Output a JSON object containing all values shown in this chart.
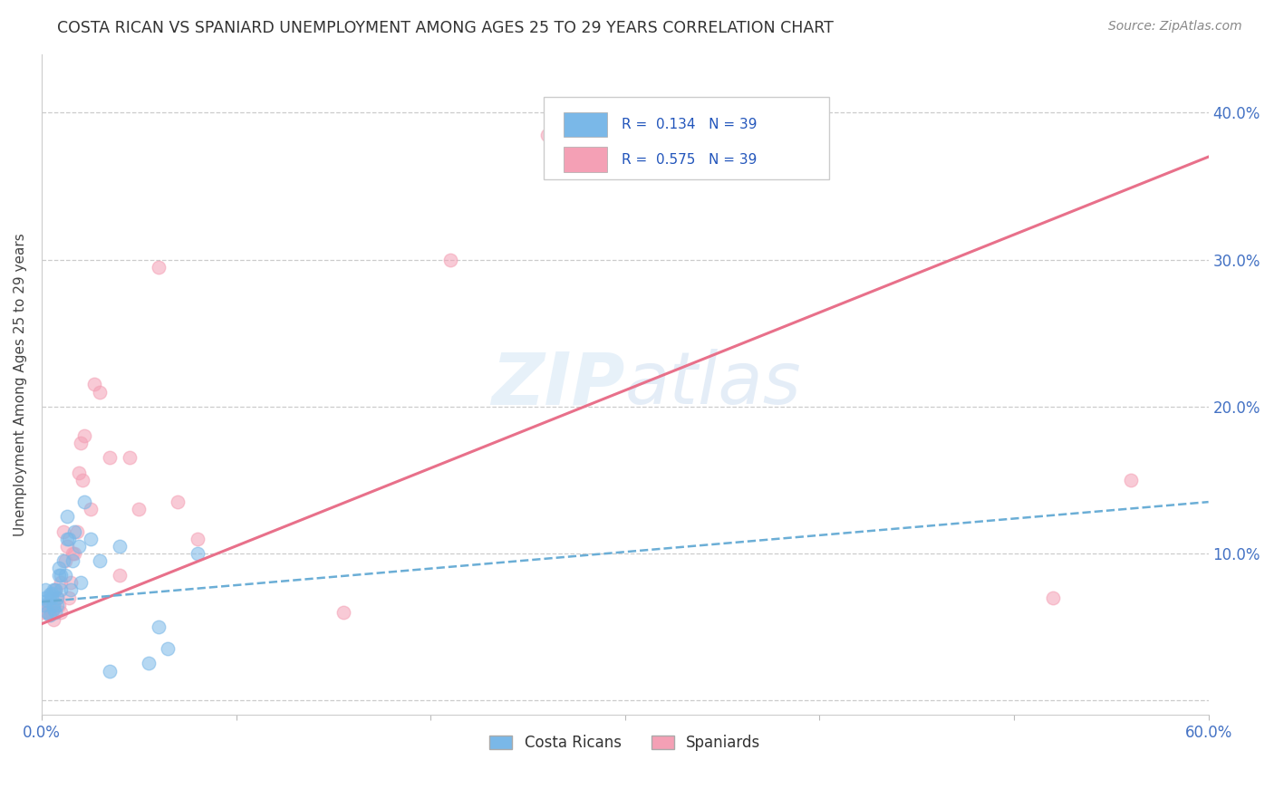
{
  "title": "COSTA RICAN VS SPANIARD UNEMPLOYMENT AMONG AGES 25 TO 29 YEARS CORRELATION CHART",
  "source": "Source: ZipAtlas.com",
  "ylabel": "Unemployment Among Ages 25 to 29 years",
  "xlim": [
    0.0,
    0.6
  ],
  "ylim": [
    -0.01,
    0.44
  ],
  "xticks": [
    0.0,
    0.1,
    0.2,
    0.3,
    0.4,
    0.5,
    0.6
  ],
  "yticks": [
    0.0,
    0.1,
    0.2,
    0.3,
    0.4
  ],
  "xticklabels": [
    "0.0%",
    "",
    "",
    "",
    "",
    "",
    "60.0%"
  ],
  "yticklabels_right": [
    "",
    "10.0%",
    "20.0%",
    "30.0%",
    "40.0%"
  ],
  "legend_r_blue": "R =  0.134",
  "legend_n_blue": "N = 39",
  "legend_r_pink": "R =  0.575",
  "legend_n_pink": "N = 39",
  "blue_color": "#7ab8e8",
  "pink_color": "#f4a0b5",
  "watermark_zip": "ZIP",
  "watermark_atlas": "atlas",
  "blue_scatter_x": [
    0.001,
    0.002,
    0.002,
    0.003,
    0.003,
    0.004,
    0.004,
    0.005,
    0.005,
    0.006,
    0.006,
    0.006,
    0.007,
    0.007,
    0.008,
    0.008,
    0.009,
    0.009,
    0.01,
    0.01,
    0.011,
    0.012,
    0.013,
    0.013,
    0.014,
    0.015,
    0.016,
    0.017,
    0.019,
    0.02,
    0.022,
    0.025,
    0.03,
    0.035,
    0.04,
    0.055,
    0.06,
    0.065,
    0.08
  ],
  "blue_scatter_y": [
    0.065,
    0.07,
    0.075,
    0.06,
    0.068,
    0.058,
    0.072,
    0.07,
    0.073,
    0.062,
    0.065,
    0.075,
    0.06,
    0.075,
    0.065,
    0.07,
    0.085,
    0.09,
    0.075,
    0.085,
    0.095,
    0.085,
    0.11,
    0.125,
    0.11,
    0.075,
    0.095,
    0.115,
    0.105,
    0.08,
    0.135,
    0.11,
    0.095,
    0.02,
    0.105,
    0.025,
    0.05,
    0.035,
    0.1
  ],
  "pink_scatter_x": [
    0.001,
    0.002,
    0.003,
    0.004,
    0.005,
    0.006,
    0.006,
    0.007,
    0.008,
    0.009,
    0.01,
    0.01,
    0.011,
    0.012,
    0.013,
    0.014,
    0.015,
    0.016,
    0.017,
    0.018,
    0.019,
    0.02,
    0.021,
    0.022,
    0.025,
    0.027,
    0.03,
    0.035,
    0.04,
    0.045,
    0.05,
    0.06,
    0.07,
    0.08,
    0.155,
    0.21,
    0.26,
    0.52,
    0.56
  ],
  "pink_scatter_y": [
    0.06,
    0.065,
    0.06,
    0.065,
    0.06,
    0.055,
    0.065,
    0.075,
    0.07,
    0.065,
    0.06,
    0.08,
    0.115,
    0.095,
    0.105,
    0.07,
    0.08,
    0.1,
    0.1,
    0.115,
    0.155,
    0.175,
    0.15,
    0.18,
    0.13,
    0.215,
    0.21,
    0.165,
    0.085,
    0.165,
    0.13,
    0.295,
    0.135,
    0.11,
    0.06,
    0.3,
    0.385,
    0.07,
    0.15
  ],
  "blue_line_x": [
    0.0,
    0.6
  ],
  "blue_line_y": [
    0.067,
    0.135
  ],
  "pink_line_x": [
    0.0,
    0.6
  ],
  "pink_line_y": [
    0.052,
    0.37
  ],
  "background_color": "#ffffff",
  "grid_color": "#cccccc",
  "title_color": "#333333",
  "source_color": "#888888",
  "tick_color_blue": "#4472c4",
  "tick_color_gray": "#666666"
}
